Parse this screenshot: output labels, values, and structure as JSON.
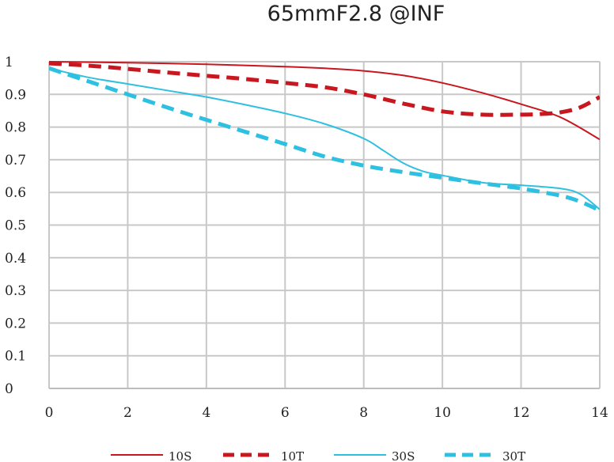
{
  "chart_data": {
    "type": "line",
    "title": "65mmF2.8 @INF",
    "xlabel": "",
    "ylabel": "",
    "xlim": [
      0,
      14
    ],
    "ylim": [
      0,
      1
    ],
    "x_ticks": [
      "0",
      "2",
      "4",
      "6",
      "8",
      "10",
      "12",
      "14"
    ],
    "x_tick_values": [
      0,
      2,
      4,
      6,
      8,
      10,
      12,
      14
    ],
    "y_ticks": [
      "0",
      "0.1",
      "0.2",
      "0.3",
      "0.4",
      "0.5",
      "0.6",
      "0.7",
      "0.8",
      "0.9",
      "1"
    ],
    "y_tick_values": [
      0,
      0.1,
      0.2,
      0.3,
      0.4,
      0.5,
      0.6,
      0.7,
      0.8,
      0.9,
      1.0
    ],
    "grid": true,
    "legend_position": "bottom",
    "series": [
      {
        "name": "10S",
        "color": "#c8171e",
        "style": "solid",
        "x": [
          0,
          2,
          4,
          6,
          7,
          8,
          9,
          10,
          11,
          12,
          13,
          14
        ],
        "y": [
          1.0,
          0.997,
          0.992,
          0.985,
          0.98,
          0.972,
          0.958,
          0.935,
          0.905,
          0.87,
          0.83,
          0.762
        ]
      },
      {
        "name": "10T",
        "color": "#c8171e",
        "style": "dashed",
        "x": [
          0,
          1,
          2,
          3,
          4,
          5,
          6,
          7,
          8,
          9,
          10,
          11,
          12,
          12.5,
          13,
          13.5,
          14
        ],
        "y": [
          0.995,
          0.988,
          0.978,
          0.967,
          0.957,
          0.947,
          0.935,
          0.922,
          0.9,
          0.872,
          0.848,
          0.838,
          0.838,
          0.84,
          0.845,
          0.86,
          0.892
        ]
      },
      {
        "name": "30S",
        "color": "#2ec0e0",
        "style": "solid",
        "x": [
          0,
          1,
          2,
          3,
          4,
          5,
          6,
          7,
          8,
          8.5,
          9,
          9.5,
          10,
          11,
          12,
          13,
          13.5,
          14
        ],
        "y": [
          0.98,
          0.952,
          0.932,
          0.912,
          0.892,
          0.868,
          0.842,
          0.81,
          0.765,
          0.728,
          0.69,
          0.665,
          0.652,
          0.63,
          0.622,
          0.612,
          0.595,
          0.548
        ]
      },
      {
        "name": "30T",
        "color": "#2ec0e0",
        "style": "dashed",
        "x": [
          0,
          1,
          2,
          3,
          4,
          5,
          6,
          7,
          8,
          9,
          10,
          11,
          12,
          13,
          13.5,
          14
        ],
        "y": [
          0.98,
          0.94,
          0.9,
          0.86,
          0.822,
          0.785,
          0.748,
          0.71,
          0.682,
          0.662,
          0.645,
          0.628,
          0.612,
          0.59,
          0.572,
          0.545
        ]
      }
    ]
  }
}
